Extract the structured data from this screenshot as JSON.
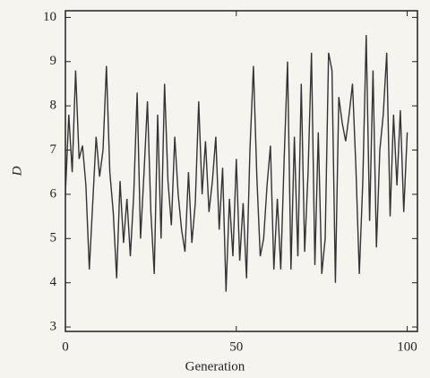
{
  "chart_data": {
    "type": "line",
    "x_label": "Generation",
    "y_label": "D",
    "x": [
      0,
      1,
      2,
      3,
      4,
      5,
      6,
      7,
      8,
      9,
      10,
      11,
      12,
      13,
      14,
      15,
      16,
      17,
      18,
      19,
      20,
      21,
      22,
      23,
      24,
      25,
      26,
      27,
      28,
      29,
      30,
      31,
      32,
      33,
      34,
      35,
      36,
      37,
      38,
      39,
      40,
      41,
      42,
      43,
      44,
      45,
      46,
      47,
      48,
      49,
      50,
      51,
      52,
      53,
      54,
      55,
      56,
      57,
      58,
      59,
      60,
      61,
      62,
      63,
      64,
      65,
      66,
      67,
      68,
      69,
      70,
      71,
      72,
      73,
      74,
      75,
      76,
      77,
      78,
      79,
      80,
      81,
      82,
      83,
      84,
      85,
      86,
      87,
      88,
      89,
      90,
      91,
      92,
      93,
      94,
      95,
      96,
      97,
      98,
      99,
      100
    ],
    "series": [
      {
        "color": "#333333",
        "values": [
          6.0,
          7.8,
          6.5,
          8.8,
          6.8,
          7.1,
          6.2,
          4.3,
          5.8,
          7.3,
          6.4,
          7.0,
          8.9,
          6.5,
          5.6,
          4.1,
          6.3,
          4.9,
          5.9,
          4.6,
          6.0,
          8.3,
          5.0,
          6.5,
          8.1,
          5.6,
          4.2,
          7.8,
          5.0,
          8.5,
          6.3,
          5.3,
          7.3,
          6.0,
          5.2,
          4.7,
          6.5,
          4.9,
          5.8,
          8.1,
          6.0,
          7.2,
          5.6,
          6.3,
          7.3,
          5.2,
          6.6,
          3.8,
          5.9,
          4.6,
          6.8,
          4.5,
          5.8,
          4.1,
          7.0,
          8.9,
          6.4,
          4.6,
          5.0,
          6.2,
          7.1,
          4.3,
          5.9,
          4.3,
          6.8,
          9.0,
          4.3,
          7.3,
          4.6,
          8.5,
          4.7,
          6.5,
          9.2,
          4.4,
          7.4,
          4.2,
          5.0,
          9.2,
          8.8,
          4.0,
          8.2,
          7.6,
          7.2,
          7.8,
          8.5,
          6.6,
          4.2,
          6.3,
          9.6,
          5.4,
          8.8,
          4.8,
          7.0,
          7.8,
          9.2,
          5.5,
          7.8,
          6.2,
          7.9,
          5.6,
          7.4
        ]
      }
    ],
    "xlim": [
      0,
      103
    ],
    "ylim": [
      2.9,
      10.15
    ],
    "xticks": [
      0,
      50,
      100
    ],
    "yticks": [
      3,
      4,
      5,
      6,
      7,
      8,
      9,
      10
    ]
  }
}
